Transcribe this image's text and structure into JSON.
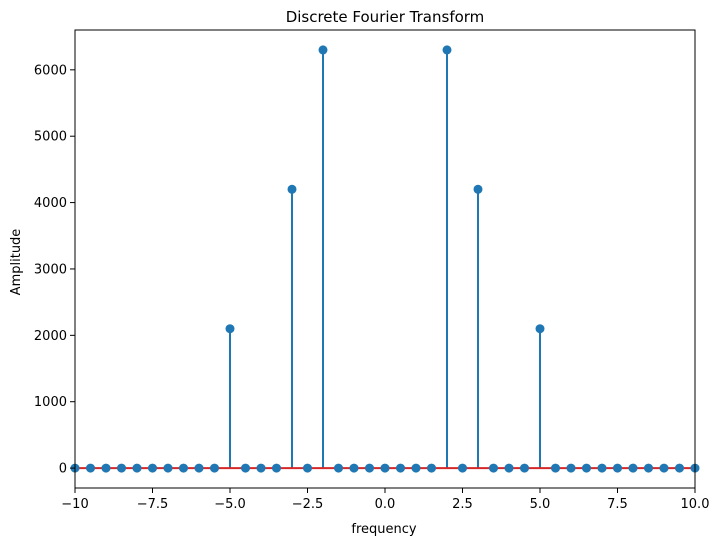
{
  "chart_data": {
    "type": "stem",
    "title": "Discrete Fourier Transform",
    "xlabel": "frequency",
    "ylabel": "Amplitude",
    "xlim": [
      -10,
      10
    ],
    "ylim": [
      -300,
      6600
    ],
    "xticks": [
      -10,
      -7.5,
      -5,
      -2.5,
      0,
      2.5,
      5,
      7.5,
      10
    ],
    "xtick_labels": [
      "−10",
      "−7.5",
      "−5.0",
      "−2.5",
      "0.0",
      "2.5",
      "5.0",
      "7.5",
      "10.0"
    ],
    "yticks": [
      0,
      1000,
      2000,
      3000,
      4000,
      5000,
      6000
    ],
    "ytick_labels": [
      "0",
      "1000",
      "2000",
      "3000",
      "4000",
      "5000",
      "6000"
    ],
    "grid": false,
    "colors": {
      "stem": "#1f77b4",
      "marker": "#1f77b4",
      "baseline": "#d62728"
    },
    "series": [
      {
        "x": [
          -10,
          -9.5,
          -9,
          -8.5,
          -8,
          -7.5,
          -7,
          -6.5,
          -6,
          -5.5,
          -5,
          -4.5,
          -4,
          -3.5,
          -3,
          -2.5,
          -2,
          -1.5,
          -1,
          -0.5,
          0,
          0.5,
          1,
          1.5,
          2,
          2.5,
          3,
          3.5,
          4,
          4.5,
          5,
          5.5,
          6,
          6.5,
          7,
          7.5,
          8,
          8.5,
          9,
          9.5,
          10
        ],
        "y": [
          0,
          0,
          0,
          0,
          0,
          0,
          0,
          0,
          0,
          0,
          2100,
          0,
          0,
          0,
          4200,
          0,
          6300,
          0,
          0,
          0,
          0,
          0,
          0,
          0,
          6300,
          0,
          4200,
          0,
          0,
          0,
          2100,
          0,
          0,
          0,
          0,
          0,
          0,
          0,
          0,
          0,
          0
        ]
      }
    ]
  }
}
